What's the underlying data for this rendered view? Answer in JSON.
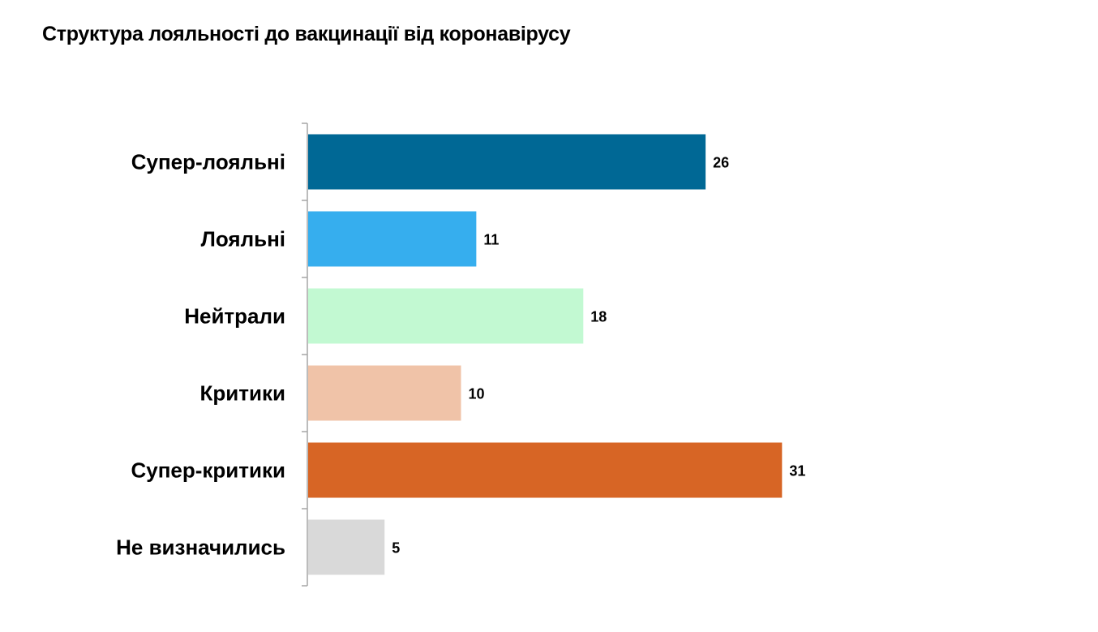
{
  "chart_data": {
    "type": "bar",
    "orientation": "horizontal",
    "title": "Структура лояльності до вакцинації від коронавірусу",
    "categories": [
      "Супер-лояльні",
      "Лояльні",
      "Нейтрали",
      "Критики",
      "Супер-критики",
      "Не визначились"
    ],
    "values": [
      26,
      11,
      18,
      10,
      31,
      5
    ],
    "colors": [
      "#006895",
      "#36AEEE",
      "#C2F9D2",
      "#F0C3A8",
      "#D76525",
      "#D9D9D9"
    ],
    "grid": false,
    "legend": "none"
  }
}
